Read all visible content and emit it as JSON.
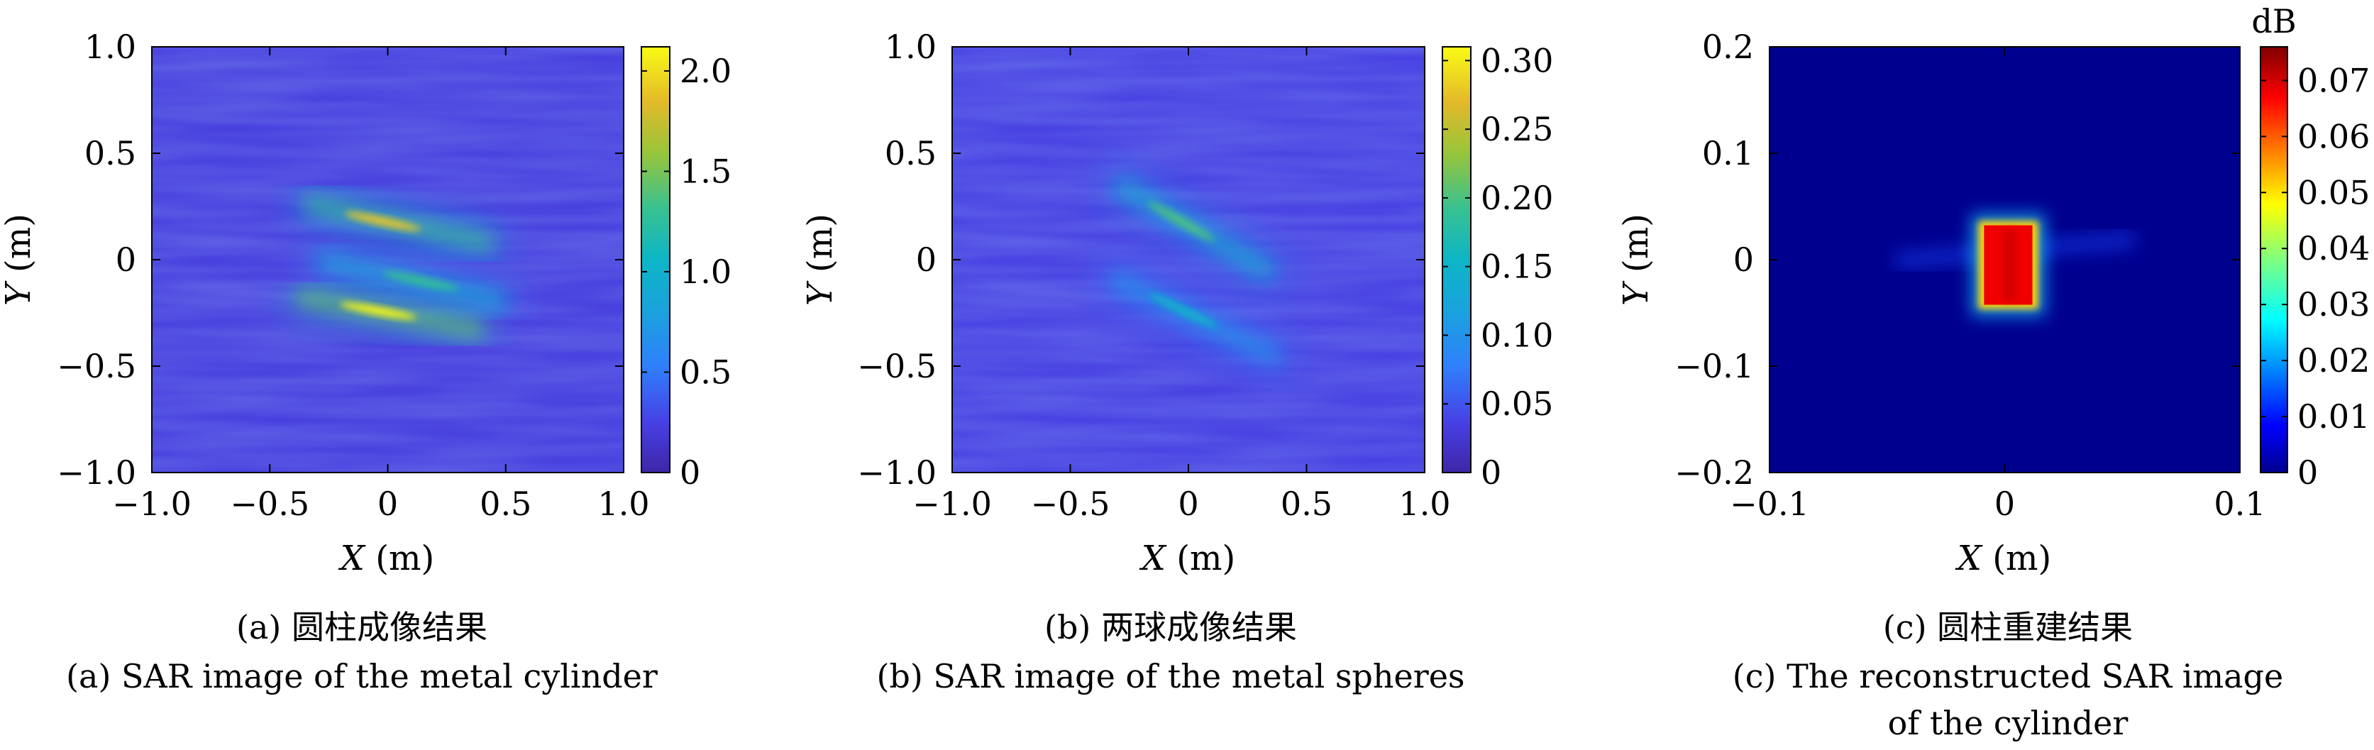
{
  "chart_data": [
    {
      "type": "heatmap",
      "caption_cn": "(a) 圆柱成像结果",
      "caption_en": "(a) SAR image of the metal cylinder",
      "xlabel_var": "X",
      "xlabel_unit": " (m)",
      "ylabel_var": "Y",
      "ylabel_unit": " (m)",
      "xlim": [
        -1.0,
        1.0
      ],
      "ylim": [
        -1.0,
        1.0
      ],
      "xticks": [
        -1.0,
        -0.5,
        0,
        0.5,
        1.0
      ],
      "xtick_labels": [
        "−1.0",
        "−0.5",
        "0",
        "0.5",
        "1.0"
      ],
      "yticks": [
        -1.0,
        -0.5,
        0,
        0.5,
        1.0
      ],
      "ytick_labels": [
        "−1.0",
        "−0.5",
        "0",
        "0.5",
        "1.0"
      ],
      "colormap": "parula",
      "clim": [
        0,
        2.12
      ],
      "cbar_ticks": [
        0,
        0.5,
        1.0,
        1.5,
        2.0
      ],
      "cbar_tick_labels": [
        "0",
        "0.5",
        "1.0",
        "1.5",
        "2.0"
      ],
      "colorbar_title": "",
      "background_level": 0.22,
      "streaks": [
        {
          "x1": -0.33,
          "y1": 0.26,
          "x2": 0.42,
          "y2": 0.08,
          "peak_x": -0.02,
          "peak_y": 0.18,
          "value": 1.9
        },
        {
          "x1": -0.27,
          "y1": -0.01,
          "x2": 0.47,
          "y2": -0.19,
          "peak_x": 0.14,
          "peak_y": -0.1,
          "value": 1.3
        },
        {
          "x1": -0.36,
          "y1": -0.18,
          "x2": 0.38,
          "y2": -0.33,
          "peak_x": -0.04,
          "peak_y": -0.24,
          "value": 2.1
        }
      ]
    },
    {
      "type": "heatmap",
      "caption_cn": "(b) 两球成像结果",
      "caption_en": "(b) SAR image of the metal spheres",
      "xlabel_var": "X",
      "xlabel_unit": " (m)",
      "ylabel_var": "Y",
      "ylabel_unit": " (m)",
      "xlim": [
        -1.0,
        1.0
      ],
      "ylim": [
        -1.0,
        1.0
      ],
      "xticks": [
        -1.0,
        -0.5,
        0,
        0.5,
        1.0
      ],
      "xtick_labels": [
        "−1.0",
        "−0.5",
        "0",
        "0.5",
        "1.0"
      ],
      "yticks": [
        -1.0,
        -0.5,
        0,
        0.5,
        1.0
      ],
      "ytick_labels": [
        "−1.0",
        "−0.5",
        "0",
        "0.5",
        "1.0"
      ],
      "colormap": "parula",
      "clim": [
        0,
        0.31
      ],
      "cbar_ticks": [
        0,
        0.05,
        0.1,
        0.15,
        0.2,
        0.25,
        0.3
      ],
      "cbar_tick_labels": [
        "0",
        "0.05",
        "0.10",
        "0.15",
        "0.20",
        "0.25",
        "0.30"
      ],
      "colorbar_title": "",
      "background_level": 0.035,
      "streaks": [
        {
          "x1": -0.28,
          "y1": 0.34,
          "x2": 0.33,
          "y2": -0.05,
          "peak_x": -0.03,
          "peak_y": 0.18,
          "value": 0.2
        },
        {
          "x1": -0.3,
          "y1": -0.1,
          "x2": 0.36,
          "y2": -0.45,
          "peak_x": -0.02,
          "peak_y": -0.24,
          "value": 0.15
        }
      ]
    },
    {
      "type": "heatmap",
      "caption_cn": "(c) 圆柱重建结果",
      "caption_en_line1": "(c) The reconstructed SAR image",
      "caption_en_line2": "of the cylinder",
      "xlabel_var": "X",
      "xlabel_unit": " (m)",
      "ylabel_var": "Y",
      "ylabel_unit": " (m)",
      "xlim": [
        -0.1,
        0.1
      ],
      "ylim": [
        -0.2,
        0.2
      ],
      "xticks": [
        -0.1,
        0,
        0.1
      ],
      "xtick_labels": [
        "−0.1",
        "0",
        "0.1"
      ],
      "yticks": [
        -0.2,
        -0.1,
        0,
        0.1,
        0.2
      ],
      "ytick_labels": [
        "−0.2",
        "−0.1",
        "0",
        "0.1",
        "0.2"
      ],
      "colormap": "jet",
      "clim": [
        0,
        0.076
      ],
      "cbar_ticks": [
        0,
        0.01,
        0.02,
        0.03,
        0.04,
        0.05,
        0.06,
        0.07
      ],
      "cbar_tick_labels": [
        "0",
        "0.01",
        "0.02",
        "0.03",
        "0.04",
        "0.05",
        "0.06",
        "0.07"
      ],
      "colorbar_title": "dB",
      "target": {
        "x_min": -0.01,
        "x_max": 0.013,
        "y_min": -0.045,
        "y_max": 0.035,
        "value": 0.07
      }
    }
  ]
}
